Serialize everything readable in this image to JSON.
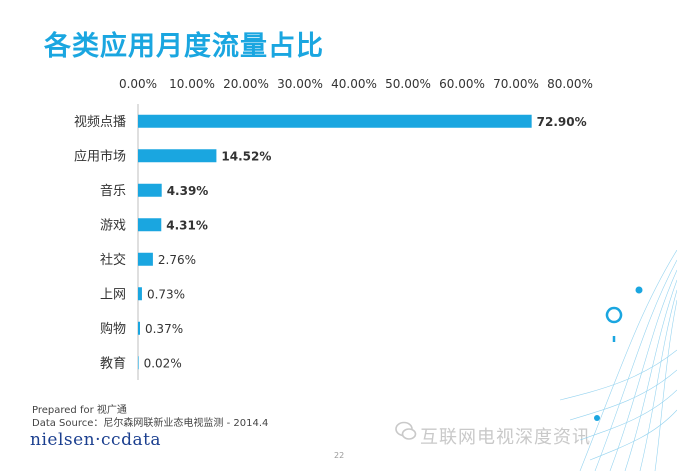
{
  "title": "各类应用月度流量占比",
  "footer": {
    "prepared": "Prepared for 视广通",
    "source": "Data Source：尼尔森网联新业态电视监测 - 2014.4",
    "logo": "nielsen·ccdata",
    "page": "22",
    "watermark": "互联网电视深度资讯"
  },
  "colors": {
    "bar": "#1aa6e0",
    "title": "#1aa6e0"
  },
  "chart_data": {
    "type": "bar",
    "orientation": "horizontal",
    "title": "",
    "xlabel": "",
    "ylabel": "",
    "xlim": [
      0,
      80
    ],
    "ticks": [
      "0.00%",
      "10.00%",
      "20.00%",
      "30.00%",
      "40.00%",
      "50.00%",
      "60.00%",
      "70.00%",
      "80.00%"
    ],
    "tick_values": [
      0,
      10,
      20,
      30,
      40,
      50,
      60,
      70,
      80
    ],
    "axis_position": "top",
    "grid": false,
    "categories": [
      "视频点播",
      "应用市场",
      "音乐",
      "游戏",
      "社交",
      "上网",
      "购物",
      "教育"
    ],
    "values": [
      72.9,
      14.52,
      4.39,
      4.31,
      2.76,
      0.73,
      0.37,
      0.02
    ],
    "labels": [
      "72.90%",
      "14.52%",
      "4.39%",
      "4.31%",
      "2.76%",
      "0.73%",
      "0.37%",
      "0.02%"
    ],
    "bold_labels": [
      true,
      true,
      true,
      true,
      false,
      false,
      false,
      false
    ]
  }
}
